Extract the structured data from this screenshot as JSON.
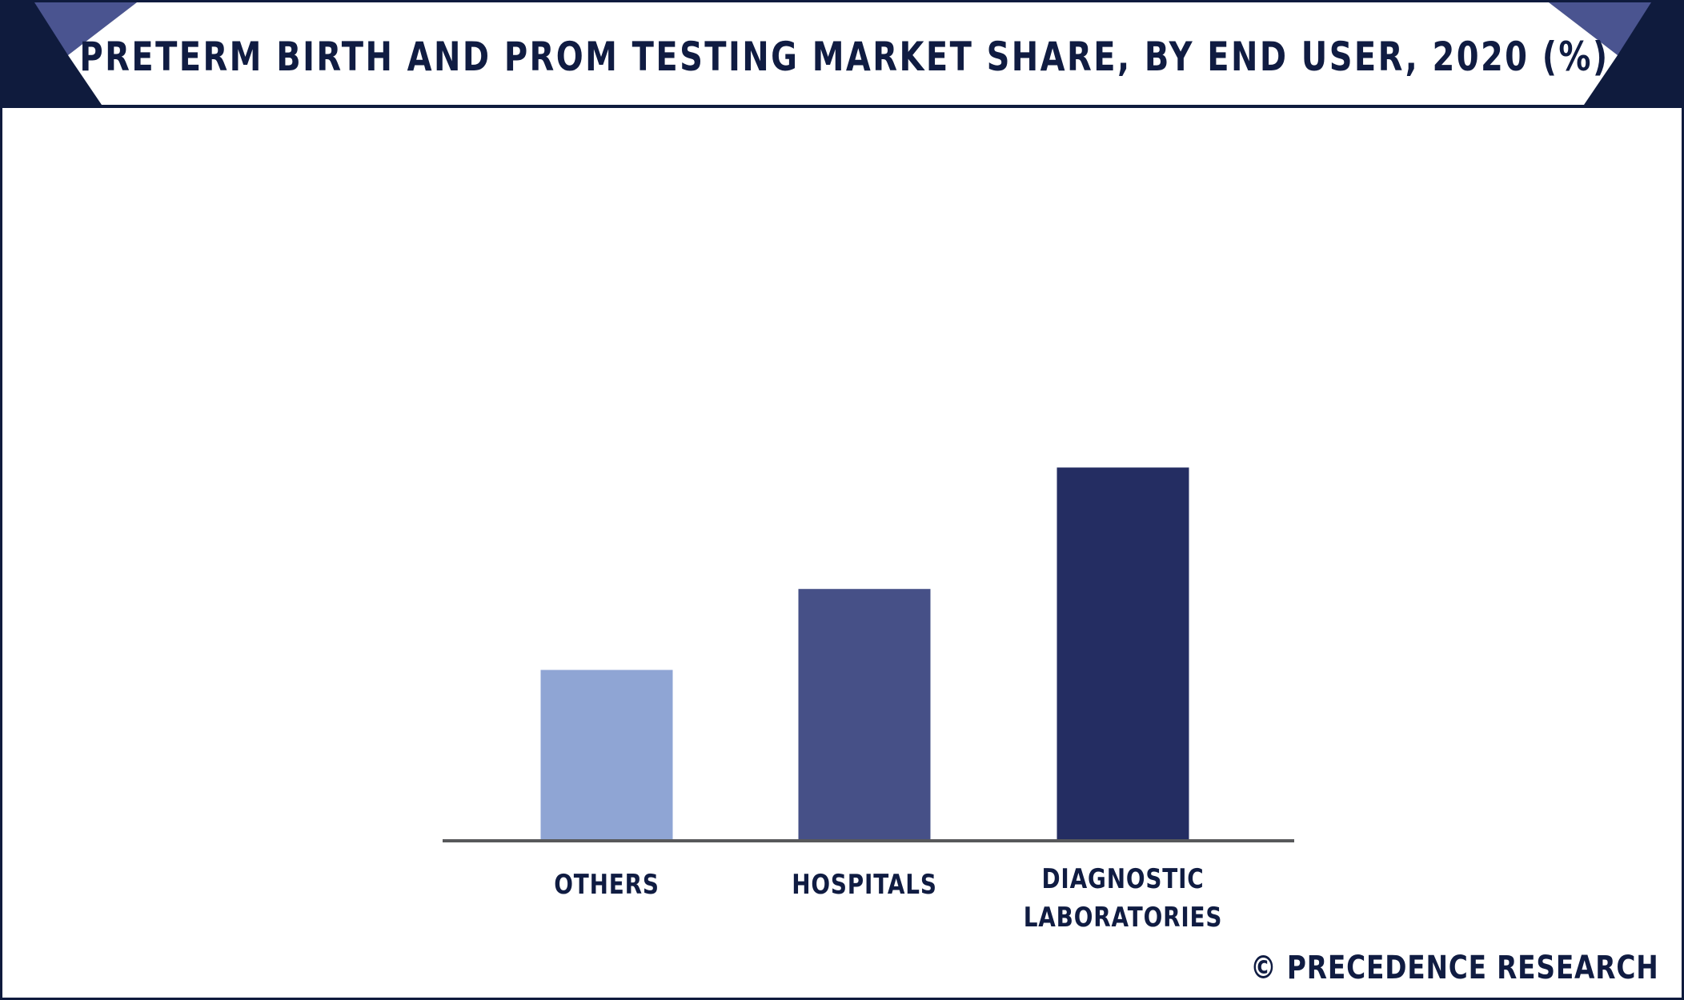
{
  "chart_data": {
    "type": "bar",
    "title": "PRETERM BIRTH AND PROM TESTING MARKET SHARE, BY END USER, 2020 (%)",
    "categories": [
      [
        "OTHERS"
      ],
      [
        "HOSPITALS"
      ],
      [
        "DIAGNOSTIC",
        "LABORATORIES"
      ]
    ],
    "values": [
      23,
      34,
      50.5
    ],
    "ylim": [
      0,
      100
    ],
    "bar_colors": [
      "#8fa5d4",
      "#465087",
      "#242d62"
    ],
    "axis_color": "#58595b",
    "grid": false,
    "legend": "none",
    "xlabel": "",
    "ylabel": ""
  },
  "header": {
    "band_dark": "#0f1b3d",
    "band_accent": "#4a5490"
  },
  "footer": {
    "credit": "© PRECEDENCE RESEARCH"
  }
}
